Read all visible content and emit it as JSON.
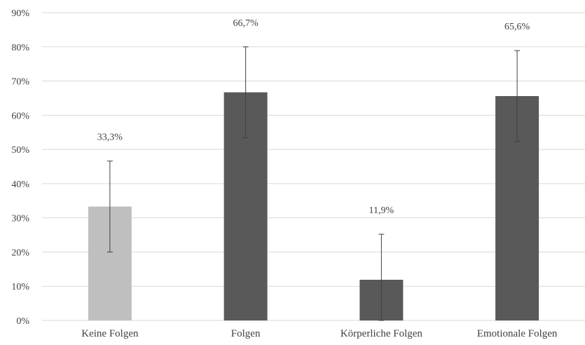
{
  "chart_data": {
    "type": "bar",
    "title": "",
    "xlabel": "",
    "ylabel": "",
    "categories": [
      "Keine Folgen",
      "Folgen",
      "Körperliche Folgen",
      "Emotionale Folgen"
    ],
    "values": [
      33.3,
      66.7,
      11.9,
      65.6
    ],
    "data_labels": [
      "33,3%",
      "66,7%",
      "11,9%",
      "65,6%"
    ],
    "error_bars": [
      {
        "low": 20.0,
        "high": 46.6
      },
      {
        "low": 53.4,
        "high": 80.0
      },
      {
        "low": 0.0,
        "high": 25.2
      },
      {
        "low": 52.3,
        "high": 78.9
      }
    ],
    "bar_colors": [
      "#bfbfbf",
      "#595959",
      "#595959",
      "#595959"
    ],
    "error_bar_color": "#404040",
    "ylim": [
      0,
      90
    ],
    "yticks": [
      0,
      10,
      20,
      30,
      40,
      50,
      60,
      70,
      80,
      90
    ],
    "ytick_labels": [
      "0%",
      "10%",
      "20%",
      "30%",
      "40%",
      "50%",
      "60%",
      "70%",
      "80%",
      "90%"
    ],
    "grid": true,
    "grid_color": "#d9d9d9",
    "legend": "none"
  }
}
